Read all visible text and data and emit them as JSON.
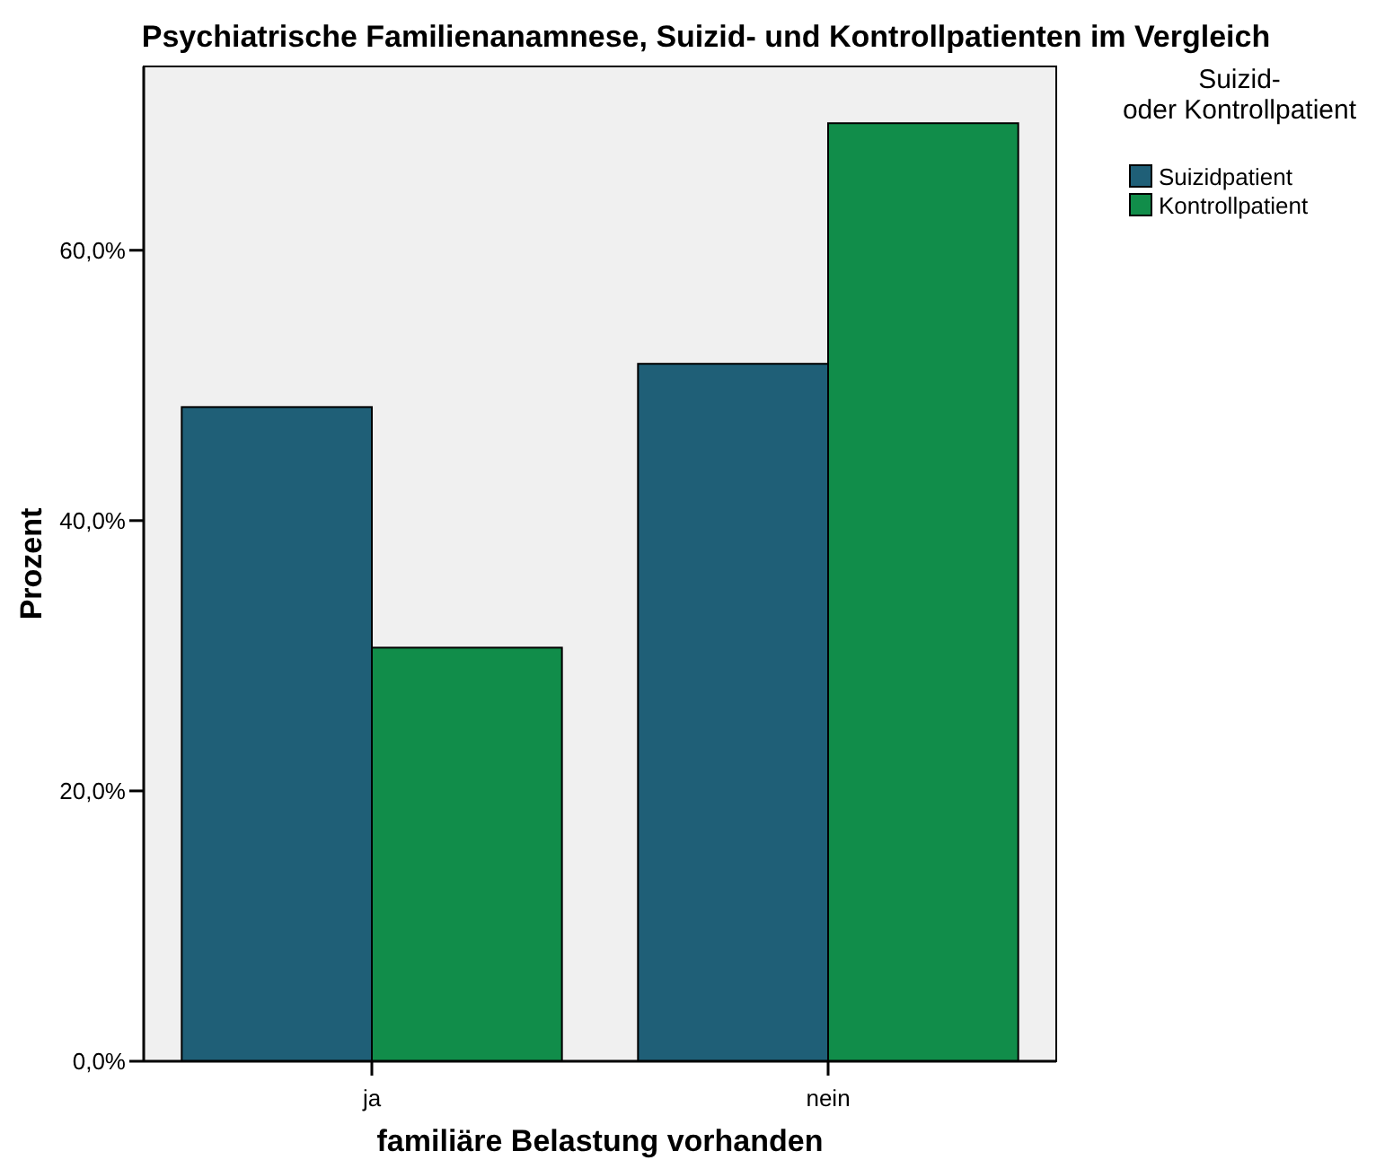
{
  "chart_data": {
    "type": "bar",
    "title": "Psychiatrische Familienanamnese, Suizid- und Kontrollpatienten im Vergleich",
    "xlabel": "familiäre Belastung vorhanden",
    "ylabel": "Prozent",
    "legend_title": "Suizid- oder Kontrollpatient",
    "categories": [
      "ja",
      "nein"
    ],
    "series": [
      {
        "name": "Suizidpatient",
        "color": "#1f5f77",
        "values": [
          48.4,
          51.6
        ]
      },
      {
        "name": "Kontrollpatient",
        "color": "#118d4a",
        "values": [
          30.6,
          69.4
        ]
      }
    ],
    "ylim": [
      0,
      73.6
    ],
    "yticks": [
      {
        "value": 0,
        "label": "0,0%"
      },
      {
        "value": 20,
        "label": "20,0%"
      },
      {
        "value": 40,
        "label": "40,0%"
      },
      {
        "value": 60,
        "label": "60,0%"
      }
    ],
    "grid": false,
    "legend": "top right"
  }
}
